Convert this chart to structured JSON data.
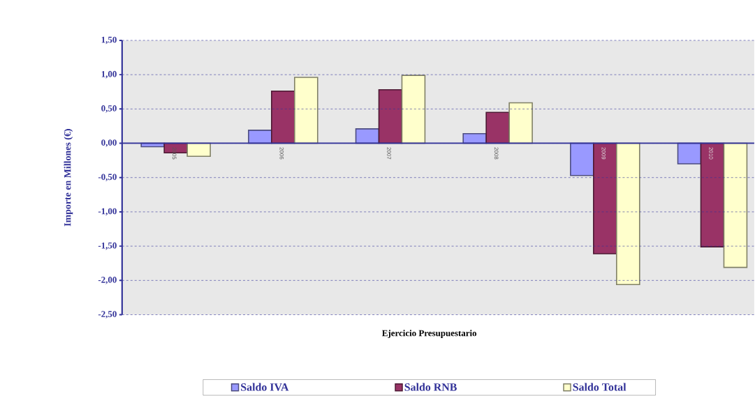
{
  "chart_data": {
    "type": "bar",
    "xlabel": "Ejercicio Presupuestario",
    "ylabel": "Importe en Millones (€)",
    "categories": [
      "2005",
      "2006",
      "2007",
      "2008",
      "2009",
      "2010"
    ],
    "series": [
      {
        "name": "Saldo IVA",
        "color": "#9999ff",
        "values": [
          -0.05,
          0.19,
          0.21,
          0.14,
          -0.47,
          -0.3
        ]
      },
      {
        "name": "Saldo RNB",
        "color": "#993366",
        "values": [
          -0.14,
          0.76,
          0.78,
          0.45,
          -1.61,
          -1.51
        ]
      },
      {
        "name": "Saldo Total",
        "color": "#ffffcc",
        "values": [
          -0.19,
          0.96,
          0.99,
          0.59,
          -2.06,
          -1.81
        ]
      }
    ],
    "ylim": [
      -2.5,
      1.5
    ],
    "yticks": [
      {
        "value": 1.5,
        "label": "1,50"
      },
      {
        "value": 1.0,
        "label": "1,00"
      },
      {
        "value": 0.5,
        "label": "0,50"
      },
      {
        "value": 0.0,
        "label": "0,00"
      },
      {
        "value": -0.5,
        "label": "-0,50"
      },
      {
        "value": -1.0,
        "label": "-1,00"
      },
      {
        "value": -1.5,
        "label": "-1,50"
      },
      {
        "value": -2.0,
        "label": "-2,00"
      },
      {
        "value": -2.5,
        "label": "-2,50"
      }
    ],
    "grid": "y",
    "legend": "bottom"
  }
}
